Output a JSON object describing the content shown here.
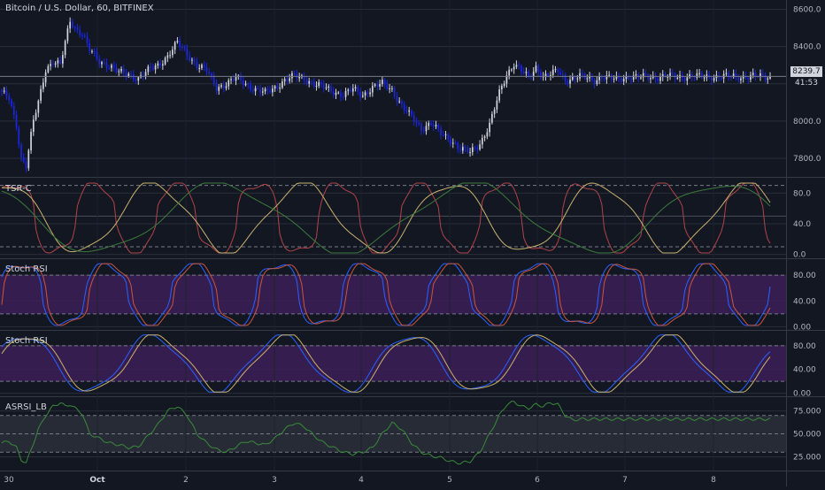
{
  "colors": {
    "background": "#131722",
    "grid": "#2a2e39",
    "text": "#b2b5be",
    "bull": "#d1d4dc",
    "bear": "#1b26e0",
    "red_line": "#b04449",
    "orange_line": "#c9b26e",
    "green_line": "#3c7a3c",
    "stoch_k": "#2962ff",
    "stoch_d": "#c9553c",
    "band_fill": "#3d1f58",
    "asrsi_line": "#3a8a3a",
    "asrsi_fill": "#2a2e39"
  },
  "chart_data": [
    {
      "id": "price",
      "type": "candlestick",
      "title": "Bitcoin / U.S. Dollar, 60, BITFINEX",
      "ylim": [
        7700,
        8650
      ],
      "yticks": [
        7800,
        8000,
        8200,
        8400,
        8600
      ],
      "ytick_labels": [
        "7800.0",
        "8000.0",
        "8200.0",
        "8400.0",
        "8600.0"
      ],
      "last_price": "8239.7",
      "countdown": "41:53",
      "anchors_x": [
        0,
        3,
        6,
        8,
        10,
        13,
        15,
        18,
        21,
        24,
        26,
        28,
        30,
        33,
        36,
        40,
        44,
        48,
        52,
        56,
        60,
        64,
        68,
        72,
        76,
        80,
        84,
        88,
        92,
        96,
        100,
        104,
        108,
        112,
        116,
        120,
        124,
        128,
        132,
        136,
        140,
        144,
        148,
        152,
        156,
        160,
        164,
        168,
        172,
        176,
        180,
        184,
        188,
        192,
        196,
        200,
        204,
        207,
        210,
        213,
        216,
        219,
        222,
        225,
        228,
        231,
        234,
        237,
        240,
        243,
        246,
        249,
        252,
        255,
        258,
        261,
        264,
        267,
        270,
        273,
        276,
        279,
        282,
        285,
        288,
        291,
        294,
        297,
        300,
        303,
        306,
        309,
        312,
        315
      ],
      "anchors_price": [
        8150,
        8120,
        7980,
        7800,
        7760,
        8000,
        8100,
        8280,
        8320,
        8300,
        8420,
        8540,
        8500,
        8470,
        8380,
        8320,
        8300,
        8260,
        8250,
        8230,
        8270,
        8300,
        8350,
        8420,
        8360,
        8300,
        8270,
        8180,
        8200,
        8230,
        8200,
        8170,
        8150,
        8180,
        8220,
        8240,
        8230,
        8200,
        8180,
        8160,
        8140,
        8170,
        8140,
        8180,
        8200,
        8170,
        8080,
        8020,
        7960,
        7990,
        7930,
        7900,
        7850,
        7830,
        7880,
        7980,
        8150,
        8250,
        8310,
        8270,
        8230,
        8290,
        8240,
        8250,
        8270,
        8220,
        8230,
        8240,
        8230,
        8220,
        8240,
        8230,
        8225,
        8235,
        8240,
        8232,
        8240,
        8238,
        8236,
        8240,
        8238,
        8239,
        8240,
        8239,
        8238,
        8240,
        8239,
        8238,
        8240,
        8239,
        8238,
        8240,
        8239,
        8239.7
      ]
    },
    {
      "id": "tsr",
      "type": "line",
      "title": "TSR-C",
      "ylim": [
        -5,
        100
      ],
      "yticks": [
        0,
        40,
        80
      ],
      "ytick_labels": [
        "0.0",
        "40.0",
        "80.0"
      ],
      "dashed_levels": [
        90,
        10
      ],
      "solid_levels": [
        50
      ],
      "series": [
        {
          "color_key": "red_line",
          "cycles_per_window": 9.5,
          "phase": 0.6,
          "sharp": true
        },
        {
          "color_key": "orange_line",
          "cycles_per_window": 5.2,
          "phase": 1.4,
          "sharp": false
        },
        {
          "color_key": "green_line",
          "cycles_per_window": 3.1,
          "phase": 2.3,
          "sharp": false
        }
      ]
    },
    {
      "id": "stoch1",
      "type": "line",
      "title": "Stoch RSI",
      "ylim": [
        -5,
        105
      ],
      "yticks": [
        0,
        40,
        80
      ],
      "ytick_labels": [
        "0.00",
        "40.00",
        "80.00"
      ],
      "band": [
        20,
        80
      ],
      "series": [
        {
          "color_key": "stoch_k",
          "cycles_per_window": 9.0,
          "phase": 0.2
        },
        {
          "color_key": "stoch_d",
          "cycles_per_window": 9.0,
          "phase": -0.1
        }
      ]
    },
    {
      "id": "stoch2",
      "type": "line",
      "title": "Stoch RSI",
      "ylim": [
        -5,
        105
      ],
      "yticks": [
        0,
        40,
        80
      ],
      "ytick_labels": [
        "0.00",
        "40.00",
        "80.00"
      ],
      "band": [
        20,
        80
      ],
      "series": [
        {
          "color_key": "stoch_k",
          "cycles_per_window": 6.0,
          "phase": 0.5
        },
        {
          "color_key": "orange_line",
          "cycles_per_window": 6.0,
          "phase": 0.25
        }
      ]
    },
    {
      "id": "asrsi",
      "type": "line",
      "title": "ASRSI_LB",
      "ylim": [
        10,
        90
      ],
      "yticks": [
        25,
        50,
        75
      ],
      "ytick_labels": [
        "25.000",
        "50.000",
        "75.000"
      ],
      "band": [
        30,
        70
      ],
      "dashed_levels": [
        50
      ],
      "series": [
        {
          "color_key": "asrsi_line",
          "anchors_x": [
            0,
            3,
            6,
            8,
            10,
            13,
            15,
            18,
            21,
            24,
            26,
            28,
            30,
            33,
            36,
            40,
            44,
            48,
            52,
            56,
            60,
            64,
            68,
            72,
            76,
            80,
            84,
            88,
            92,
            96,
            100,
            104,
            108,
            112,
            116,
            120,
            124,
            128,
            132,
            136,
            140,
            144,
            148,
            152,
            156,
            160,
            164,
            168,
            172,
            176,
            180,
            184,
            188,
            192,
            196,
            200,
            204,
            207,
            210,
            213,
            216,
            219,
            222,
            225,
            228,
            231,
            234,
            237,
            240,
            243,
            246,
            249,
            252,
            255,
            258,
            261,
            264,
            267,
            270,
            273,
            276,
            279,
            282,
            285,
            288,
            291,
            294,
            297,
            300,
            303,
            306,
            309,
            312,
            315
          ],
          "anchors_y": [
            40,
            42,
            35,
            22,
            18,
            40,
            55,
            70,
            80,
            84,
            80,
            82,
            78,
            72,
            50,
            45,
            40,
            38,
            35,
            36,
            48,
            60,
            75,
            80,
            70,
            50,
            40,
            33,
            30,
            36,
            42,
            40,
            38,
            45,
            55,
            62,
            58,
            48,
            40,
            35,
            30,
            28,
            30,
            35,
            50,
            62,
            55,
            40,
            30,
            26,
            24,
            20,
            18,
            20,
            30,
            50,
            70,
            82,
            85,
            80,
            78,
            82,
            80,
            84,
            82,
            70,
            65,
            66,
            66,
            66,
            66,
            66,
            66,
            66,
            66,
            66,
            66,
            66,
            66,
            66,
            66,
            66,
            66,
            66,
            66,
            66,
            66,
            66,
            66,
            66,
            66,
            66,
            66,
            66
          ]
        }
      ]
    }
  ],
  "x_axis": {
    "labels": [
      "30",
      "Oct",
      "2",
      "3",
      "4",
      "5",
      "6",
      "7",
      "8"
    ],
    "bold_label": "Oct"
  }
}
